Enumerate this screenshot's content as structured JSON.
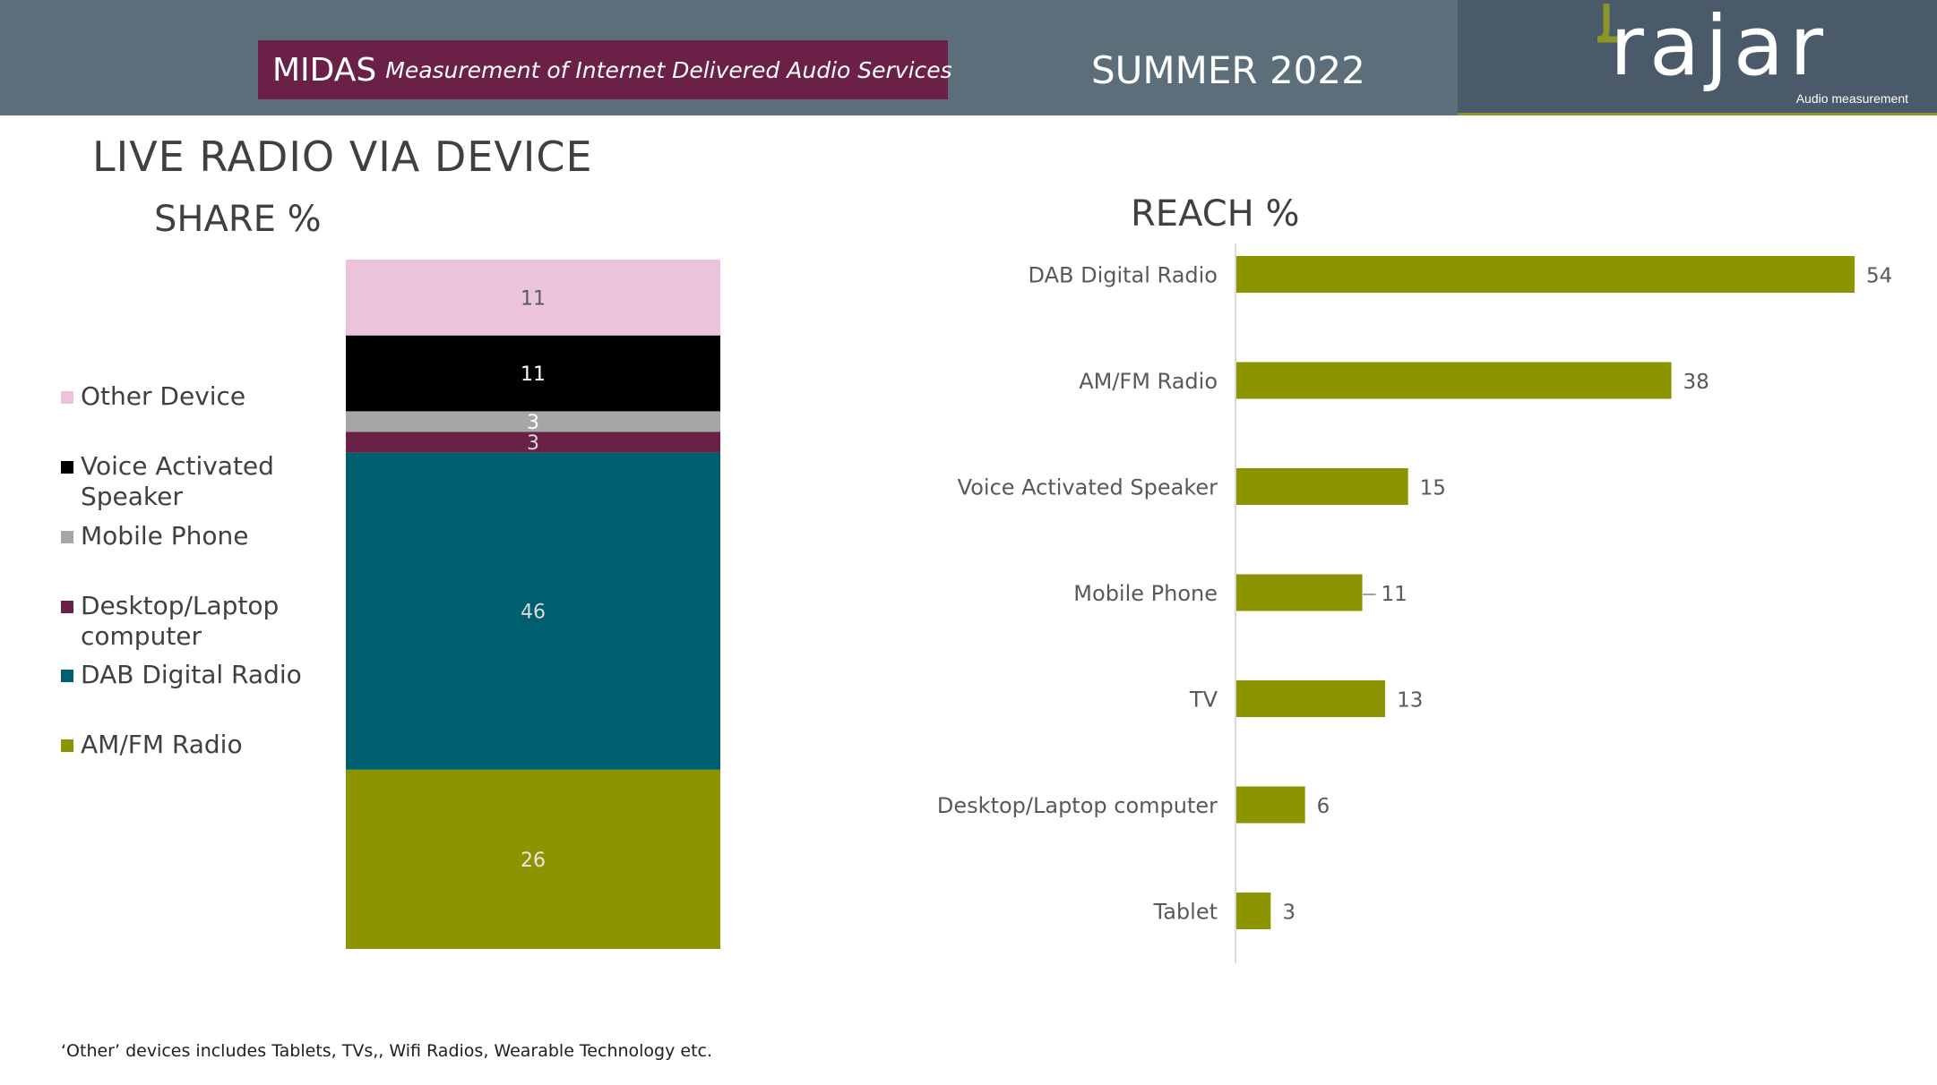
{
  "header": {
    "midas_main": "MIDAS",
    "midas_sub": "Measurement of Internet Delivered Audio Services",
    "period": "SUMMER 2022",
    "logo_text": "rajar",
    "logo_tagline": "Audio measurement"
  },
  "page_title": "LIVE RADIO VIA DEVICE",
  "footnote": "‘Other’ devices includes Tablets,  TVs,, Wifi Radios,  Wearable Technology etc.",
  "legend": [
    {
      "label_line1": "Other Device",
      "label_line2": ""
    },
    {
      "label_line1": "Voice Activated",
      "label_line2": "Speaker"
    },
    {
      "label_line1": "Mobile Phone",
      "label_line2": ""
    },
    {
      "label_line1": "Desktop/Laptop",
      "label_line2": "computer"
    },
    {
      "label_line1": "DAB Digital Radio",
      "label_line2": ""
    },
    {
      "label_line1": "AM/FM Radio",
      "label_line2": ""
    }
  ],
  "colors": {
    "header_bg": "#5b6e7a",
    "midas_bg": "#6b2048",
    "other_device": "#ebc4dc",
    "voice_speaker": "#000000",
    "mobile_phone": "#a6a6a6",
    "desktop_laptop": "#6b2048",
    "dab": "#005f6e",
    "amfm": "#8c9400",
    "reach_bar": "#8c9400"
  },
  "chart_data": [
    {
      "type": "bar",
      "stacked": true,
      "title": "SHARE %",
      "series": [
        {
          "name": "AM/FM Radio",
          "value": 26,
          "color": "#8c9400",
          "label_color": "#e6e6e6"
        },
        {
          "name": "DAB Digital Radio",
          "value": 46,
          "color": "#005f6e",
          "label_color": "#d9d9d9"
        },
        {
          "name": "Desktop/Laptop computer",
          "value": 3,
          "color": "#6b2048",
          "label_color": "#d9d9d9"
        },
        {
          "name": "Mobile Phone",
          "value": 3,
          "color": "#a6a6a6",
          "label_color": "#ffffff"
        },
        {
          "name": "Voice Activated Speaker",
          "value": 11,
          "color": "#000000",
          "label_color": "#ffffff"
        },
        {
          "name": "Other Device",
          "value": 11,
          "color": "#ebc4dc",
          "label_color": "#595959"
        }
      ]
    },
    {
      "type": "bar",
      "orientation": "horizontal",
      "title": "REACH %",
      "categories": [
        "DAB Digital Radio",
        "AM/FM Radio",
        "Voice Activated Speaker",
        "Mobile Phone",
        "TV",
        "Desktop/Laptop computer",
        "Tablet"
      ],
      "values": [
        54,
        38,
        15,
        11,
        13,
        6,
        3
      ],
      "xlim": [
        0,
        60
      ]
    }
  ]
}
